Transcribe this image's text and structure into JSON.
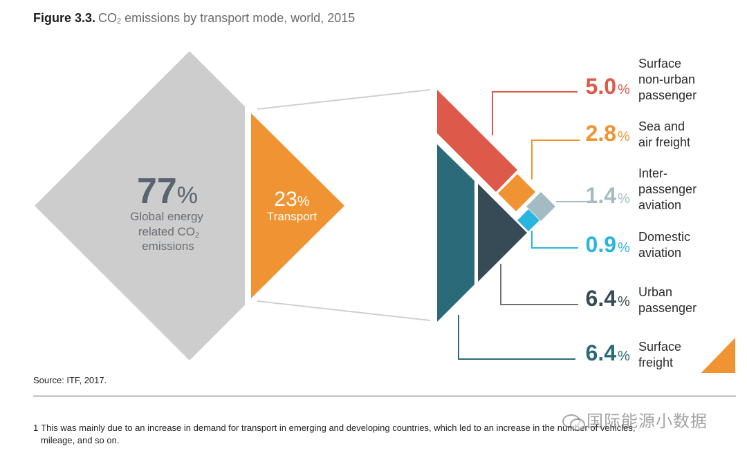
{
  "figure": {
    "label": "Figure 3.3.",
    "title_pre": "CO",
    "title_sub": "2",
    "title_post": " emissions by transport mode, world, 2015"
  },
  "chart_data": {
    "type": "proportional-area",
    "title": "CO2 emissions by transport mode, world, 2015",
    "unit": "%",
    "total_split": [
      {
        "name": "Global energy related CO2 emissions",
        "value": 77,
        "color": "#cdcdcd"
      },
      {
        "name": "Transport",
        "value": 23,
        "color": "#f09433"
      }
    ],
    "transport_breakdown": [
      {
        "name": "Surface non-urban passenger",
        "label_lines": [
          "Surface",
          "non-urban",
          "passenger"
        ],
        "value": 5.0,
        "value_label": "5.0",
        "color": "#dd5a4b"
      },
      {
        "name": "Sea and air freight",
        "label_lines": [
          "Sea and",
          "air freight"
        ],
        "value": 2.8,
        "value_label": "2.8",
        "color": "#f09433"
      },
      {
        "name": "Inter-passenger aviation",
        "label_lines": [
          "Inter-",
          "passenger",
          "aviation"
        ],
        "value": 1.4,
        "value_label": "1.4",
        "color": "#a3bcc4"
      },
      {
        "name": "Domestic aviation",
        "label_lines": [
          "Domestic",
          "aviation"
        ],
        "value": 0.9,
        "value_label": "0.9",
        "color": "#2ab5de"
      },
      {
        "name": "Urban passenger",
        "label_lines": [
          "Urban",
          "passenger"
        ],
        "value": 6.4,
        "value_label": "6.4",
        "color": "#374b57"
      },
      {
        "name": "Surface freight",
        "label_lines": [
          "Surface",
          "freight"
        ],
        "value": 6.4,
        "value_label": "6.4",
        "color": "#2a6a79"
      }
    ],
    "big_labels": {
      "global_value": "77",
      "global_lines": [
        "Global energy",
        "related CO",
        "emissions"
      ],
      "global_sub": "2",
      "transport_value": "23",
      "transport_label": "Transport",
      "pct_sign": "%"
    }
  },
  "source": "Source: ITF, 2017.",
  "footnote": {
    "number": "1",
    "line1": "This was mainly due to an increase in demand for transport in emerging and developing countries, which led to an increase in the number of vehicles,",
    "line2": "mileage, and so on."
  },
  "watermark": "国际能源小数据"
}
